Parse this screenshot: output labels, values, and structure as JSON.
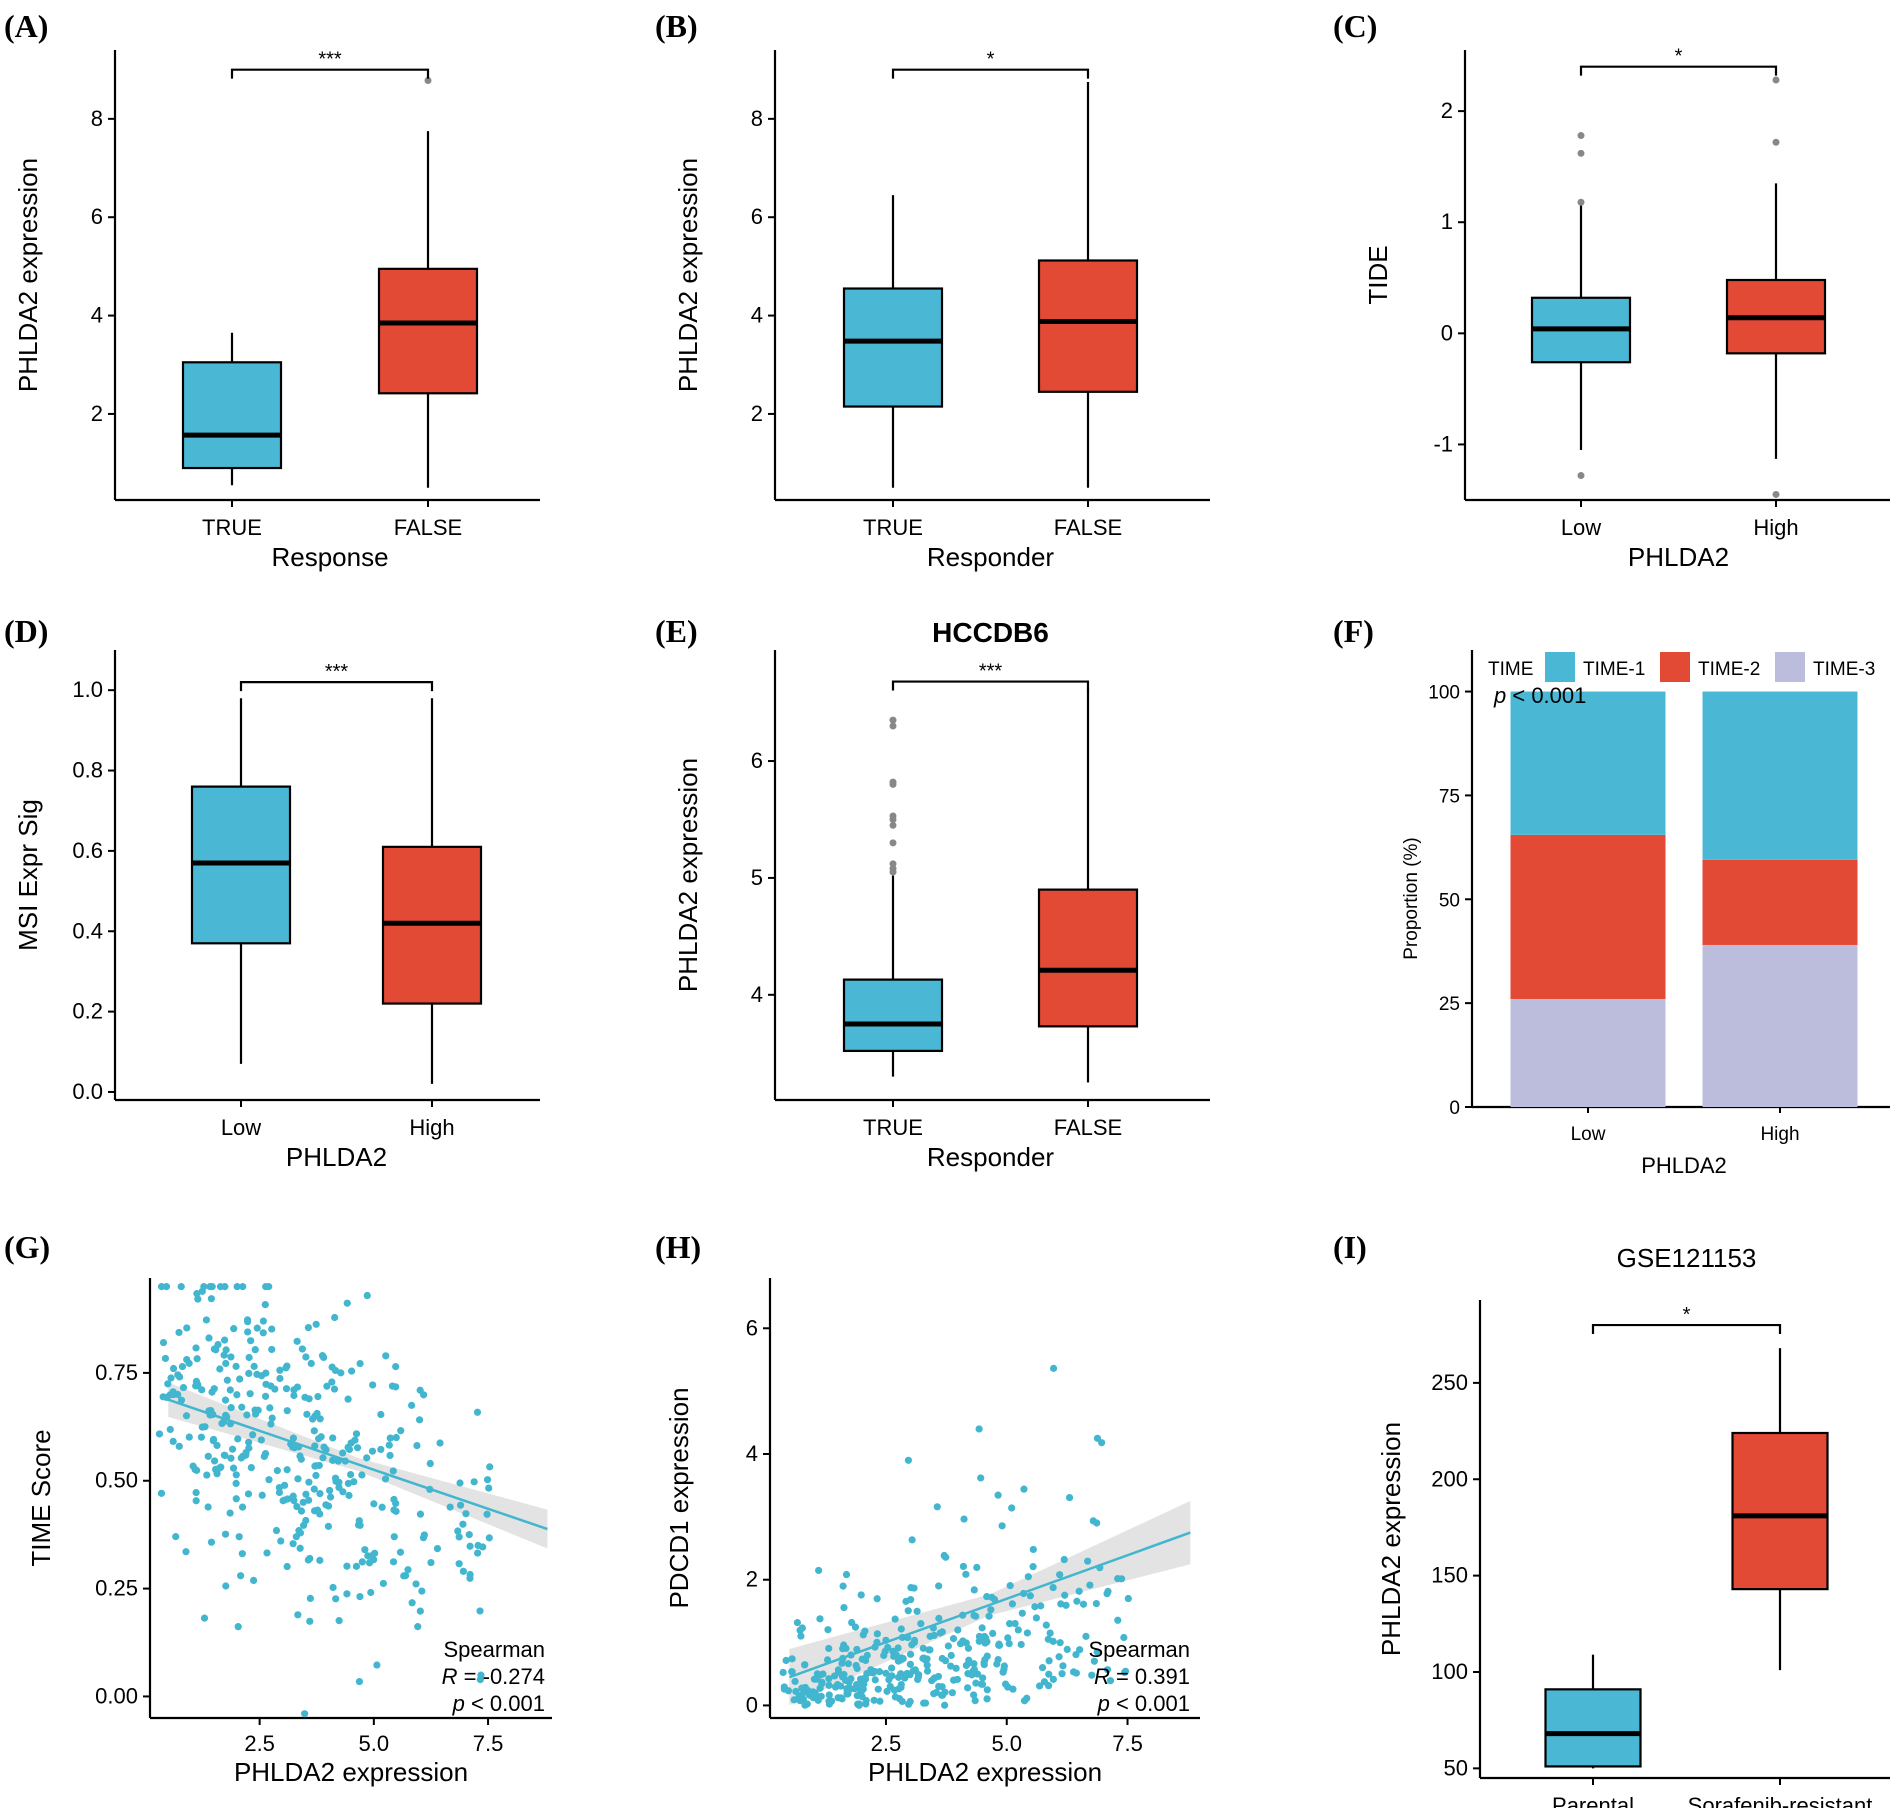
{
  "colors": {
    "blue": "#4ab8d4",
    "red": "#e34a36",
    "lavender": "#bcbcdc",
    "outlier": "#888888",
    "scatter": "#42b6cf",
    "ci_band": "#dcdcdc"
  },
  "chart_data": [
    {
      "panel": "A",
      "letter": "(A)",
      "type": "box",
      "title": "",
      "xlabel": "Response",
      "ylabel": "PHLDA2 expression",
      "ylim": [
        0.25,
        9.4
      ],
      "yticks": [
        2,
        4,
        6,
        8
      ],
      "ytick_labels": [
        "2",
        "4",
        "6",
        "8"
      ],
      "groups": [
        {
          "label": "TRUE",
          "color": "blue",
          "min": 0.55,
          "q1": 0.9,
          "median": 1.57,
          "q3": 3.05,
          "max": 3.65,
          "outliers": []
        },
        {
          "label": "FALSE",
          "color": "red",
          "min": 0.5,
          "q1": 2.42,
          "median": 3.85,
          "q3": 4.95,
          "max": 7.75,
          "outliers": [
            8.78
          ]
        }
      ],
      "significance": "***",
      "sig_y": 9.0
    },
    {
      "panel": "B",
      "letter": "(B)",
      "type": "box",
      "title": "",
      "xlabel": "Responder",
      "ylabel": "PHLDA2 expression",
      "ylim": [
        0.25,
        9.4
      ],
      "yticks": [
        2,
        4,
        6,
        8
      ],
      "ytick_labels": [
        "2",
        "4",
        "6",
        "8"
      ],
      "groups": [
        {
          "label": "TRUE",
          "color": "blue",
          "min": 0.5,
          "q1": 2.15,
          "median": 3.48,
          "q3": 4.55,
          "max": 6.45,
          "outliers": []
        },
        {
          "label": "FALSE",
          "color": "red",
          "min": 0.5,
          "q1": 2.45,
          "median": 3.88,
          "q3": 5.12,
          "max": 8.75,
          "outliers": []
        }
      ],
      "significance": "*",
      "sig_y": 9.0
    },
    {
      "panel": "C",
      "letter": "(C)",
      "type": "box",
      "title": "",
      "xlabel": "PHLDA2",
      "ylabel": "TIDE",
      "ylim": [
        -1.5,
        2.55
      ],
      "yticks": [
        -1,
        0,
        1,
        2
      ],
      "ytick_labels": [
        "-1",
        "0",
        "1",
        "2"
      ],
      "groups": [
        {
          "label": "Low",
          "color": "blue",
          "min": -1.05,
          "q1": -0.26,
          "median": 0.04,
          "q3": 0.32,
          "max": 1.15,
          "outliers": [
            1.18,
            1.62,
            1.78,
            -1.28
          ]
        },
        {
          "label": "High",
          "color": "red",
          "min": -1.13,
          "q1": -0.18,
          "median": 0.14,
          "q3": 0.48,
          "max": 1.35,
          "outliers": [
            1.72,
            2.28,
            -1.45
          ]
        }
      ],
      "significance": "*",
      "sig_y": 2.4
    },
    {
      "panel": "D",
      "letter": "(D)",
      "type": "box",
      "title": "",
      "xlabel": "PHLDA2",
      "ylabel": "MSI Expr Sig",
      "ylim": [
        -0.02,
        1.1
      ],
      "yticks": [
        0.0,
        0.2,
        0.4,
        0.6,
        0.8,
        1.0
      ],
      "ytick_labels": [
        "0.0",
        "0.2",
        "0.4",
        "0.6",
        "0.8",
        "1.0"
      ],
      "groups": [
        {
          "label": "Low",
          "color": "blue",
          "min": 0.07,
          "q1": 0.37,
          "median": 0.57,
          "q3": 0.76,
          "max": 0.98,
          "outliers": []
        },
        {
          "label": "High",
          "color": "red",
          "min": 0.02,
          "q1": 0.22,
          "median": 0.42,
          "q3": 0.61,
          "max": 0.98,
          "outliers": []
        }
      ],
      "significance": "***",
      "sig_y": 1.02
    },
    {
      "panel": "E",
      "letter": "(E)",
      "type": "box",
      "title": "HCCDB6",
      "xlabel": "Responder",
      "ylabel": "PHLDA2 expression",
      "ylim": [
        3.1,
        6.95
      ],
      "yticks": [
        4,
        5,
        6
      ],
      "ytick_labels": [
        "4",
        "5",
        "6"
      ],
      "groups": [
        {
          "label": "TRUE",
          "color": "blue",
          "min": 3.3,
          "q1": 3.52,
          "median": 3.75,
          "q3": 4.13,
          "max": 5.02,
          "outliers": [
            5.05,
            5.08,
            5.12,
            5.3,
            5.45,
            5.5,
            5.53,
            5.8,
            5.82,
            6.3,
            6.35
          ]
        },
        {
          "label": "FALSE",
          "color": "red",
          "min": 3.25,
          "q1": 3.73,
          "median": 4.21,
          "q3": 4.9,
          "max": 6.62,
          "outliers": []
        }
      ],
      "significance": "***",
      "sig_y": 6.68
    },
    {
      "panel": "F",
      "letter": "(F)",
      "type": "stacked_bar",
      "title": "",
      "xlabel": "PHLDA2",
      "ylabel": "Proportion (%)",
      "ylim": [
        0,
        110
      ],
      "yticks": [
        0,
        25,
        50,
        75,
        100
      ],
      "ytick_labels": [
        "0",
        "25",
        "50",
        "75",
        "100"
      ],
      "categories": [
        "Low",
        "High"
      ],
      "legend_title": "TIME",
      "series": [
        {
          "name": "TIME-3",
          "color": "lavender",
          "values": [
            26,
            39
          ]
        },
        {
          "name": "TIME-2",
          "color": "red",
          "values": [
            39.5,
            20.5
          ]
        },
        {
          "name": "TIME-1",
          "color": "blue",
          "values": [
            34.5,
            40.5
          ]
        }
      ],
      "legend_order": [
        "TIME-1",
        "TIME-2",
        "TIME-3"
      ],
      "annotation": {
        "p": "p",
        "rest": " < 0.001"
      }
    },
    {
      "panel": "G",
      "letter": "(G)",
      "type": "scatter",
      "title": "",
      "xlabel": "PHLDA2 expression",
      "ylabel": "TIME Score",
      "xlim": [
        0.1,
        8.9
      ],
      "ylim": [
        -0.05,
        0.97
      ],
      "xticks": [
        2.5,
        5.0,
        7.5
      ],
      "xtick_labels": [
        "2.5",
        "5.0",
        "7.5"
      ],
      "yticks": [
        0.0,
        0.25,
        0.5,
        0.75
      ],
      "ytick_labels": [
        "0.00",
        "0.25",
        "0.50",
        "0.75"
      ],
      "fit": {
        "x0": 0.5,
        "y0": 0.688,
        "x1": 8.8,
        "y1": 0.388,
        "ci": 0.025
      },
      "stats": {
        "method": "Spearman",
        "r_label": "R",
        "r_value": " = -0.274",
        "p_label": "p",
        "p_value": " < 0.001"
      },
      "n_points": 380,
      "trend": {
        "a": 0.725,
        "b": -0.0424,
        "sd": 0.17,
        "ymin": -0.04,
        "ymax": 0.95
      }
    },
    {
      "panel": "H",
      "letter": "(H)",
      "type": "scatter",
      "title": "",
      "xlabel": "PHLDA2 expression",
      "ylabel": "PDCD1 expression",
      "xlim": [
        0.1,
        9.0
      ],
      "ylim": [
        -0.2,
        6.8
      ],
      "xticks": [
        2.5,
        5.0,
        7.5
      ],
      "xtick_labels": [
        "2.5",
        "5.0",
        "7.5"
      ],
      "yticks": [
        0,
        2,
        4,
        6
      ],
      "ytick_labels": [
        "0",
        "2",
        "4",
        "6"
      ],
      "fit": {
        "x0": 0.5,
        "y0": 0.45,
        "x1": 8.8,
        "y1": 2.75,
        "ci": 0.28
      },
      "stats": {
        "method": "Spearman",
        "r_label": "R",
        "r_value": " = 0.391",
        "p_label": "p",
        "p_value": " < 0.001"
      },
      "n_points": 370,
      "trend": {
        "a": 0.3,
        "b": 0.27,
        "sd": 0.9,
        "ymin": 0,
        "ymax": 6.6
      }
    },
    {
      "panel": "I",
      "letter": "(I)",
      "type": "box",
      "title": "GSE121153",
      "xlabel": "",
      "ylabel": "PHLDA2 expression",
      "ylim": [
        45,
        293
      ],
      "yticks": [
        50,
        100,
        150,
        200,
        250
      ],
      "ytick_labels": [
        "50",
        "100",
        "150",
        "200",
        "250"
      ],
      "groups": [
        {
          "label": "Parental",
          "color": "blue",
          "min": 50,
          "q1": 51,
          "median": 68,
          "q3": 91,
          "max": 109,
          "outliers": []
        },
        {
          "label": "Sorafenib-resistant",
          "color": "red",
          "min": 101,
          "q1": 143,
          "median": 181,
          "q3": 224,
          "max": 268,
          "outliers": []
        }
      ],
      "significance": "*",
      "sig_y": 280
    }
  ]
}
